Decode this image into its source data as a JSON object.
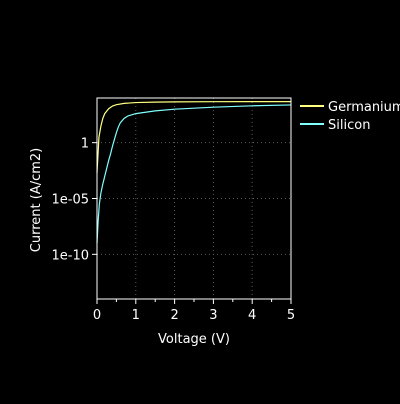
{
  "chart_data": {
    "type": "line",
    "title": "",
    "xlabel": "Voltage (V)",
    "ylabel": "Current (A/cm2)",
    "xlim": [
      0,
      5
    ],
    "ylim": [
      1e-14,
      10000.0
    ],
    "yscale": "log",
    "grid": true,
    "legend_position": "outside-right-top",
    "x_ticks": [
      {
        "value": 0,
        "label": "0"
      },
      {
        "value": 1,
        "label": "1"
      },
      {
        "value": 2,
        "label": "2"
      },
      {
        "value": 3,
        "label": "3"
      },
      {
        "value": 4,
        "label": "4"
      },
      {
        "value": 5,
        "label": "5"
      }
    ],
    "y_ticks": [
      {
        "value": 1,
        "label": "1"
      },
      {
        "value": 1e-05,
        "label": "1e-05"
      },
      {
        "value": 1e-10,
        "label": "1e-10"
      }
    ],
    "series": [
      {
        "name": "Germanium",
        "color": "#ffff80",
        "x": [
          0,
          0.05,
          0.1,
          0.15,
          0.2,
          0.3,
          0.4,
          0.5,
          0.7,
          1.0,
          1.5,
          2.0,
          3.0,
          4.0,
          5.0
        ],
        "y": [
          0.002,
          3,
          30,
          150,
          400,
          1100,
          1900,
          2500,
          3300,
          3900,
          4300,
          4500,
          4650,
          4700,
          4700
        ]
      },
      {
        "name": "Silicon",
        "color": "#80ffff",
        "x": [
          0,
          0.03,
          0.06,
          0.1,
          0.15,
          0.2,
          0.25,
          0.3,
          0.35,
          0.4,
          0.45,
          0.5,
          0.55,
          0.6,
          0.7,
          0.8,
          1.0,
          1.5,
          2.0,
          3.0,
          4.0,
          5.0
        ],
        "y": [
          1e-09,
          1e-07,
          3e-06,
          3e-05,
          0.0002,
          0.001,
          0.005,
          0.025,
          0.1,
          0.5,
          2,
          8,
          25,
          60,
          150,
          250,
          400,
          700,
          1000,
          1500,
          2000,
          2400
        ]
      }
    ]
  }
}
